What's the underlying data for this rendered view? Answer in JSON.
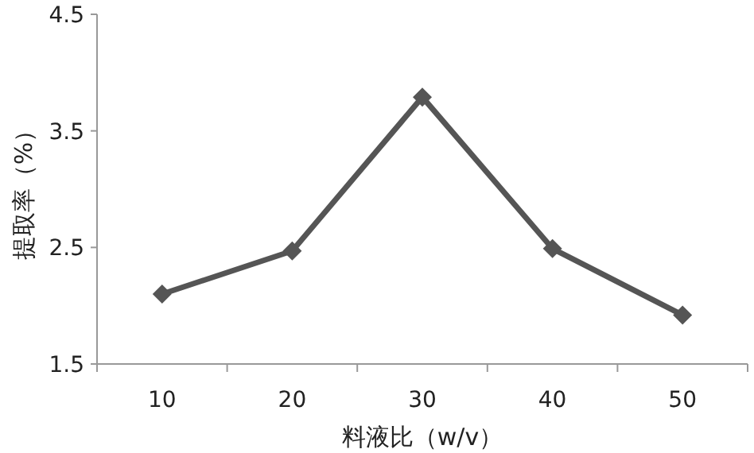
{
  "chart_data": {
    "type": "line",
    "xlabel": "料液比（w/v）",
    "ylabel": "提取率（%）",
    "categories": [
      "10",
      "20",
      "30",
      "40",
      "50"
    ],
    "series": [
      {
        "color": "#555555",
        "values": [
          2.1,
          2.47,
          3.79,
          2.49,
          1.92
        ]
      }
    ],
    "ylim": [
      1.5,
      4.5
    ],
    "yticks": [
      1.5,
      2.5,
      3.5,
      4.5
    ],
    "marker": "diamond"
  }
}
